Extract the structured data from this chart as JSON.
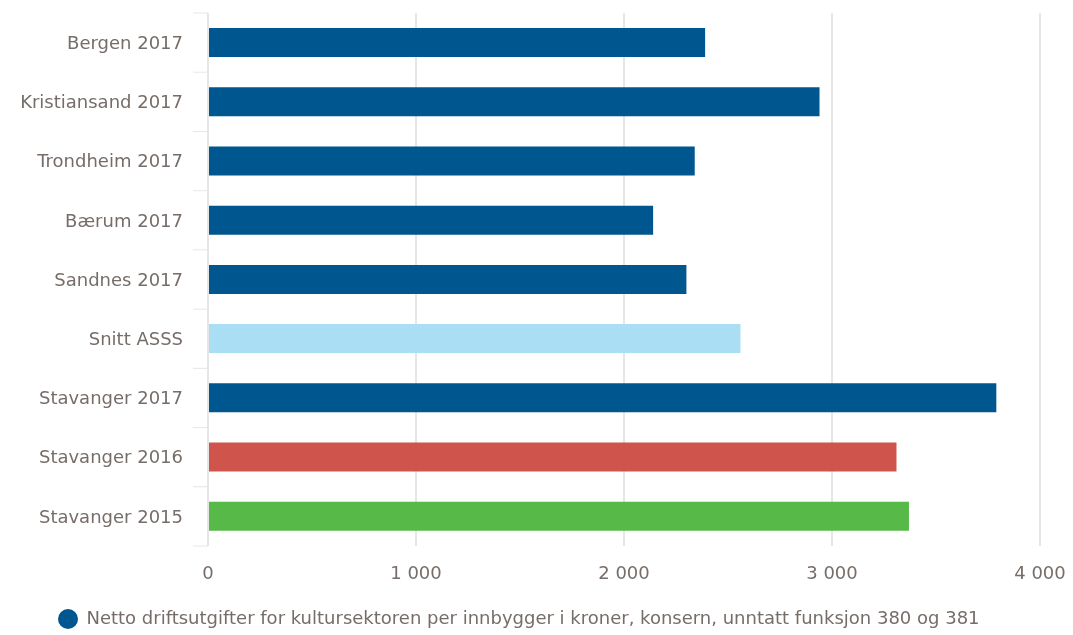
{
  "chart_data": {
    "type": "bar",
    "orientation": "horizontal",
    "categories": [
      "Bergen 2017",
      "Kristiansand 2017",
      "Trondheim 2017",
      "Bærum 2017",
      "Sandnes 2017",
      "Snitt ASSS",
      "Stavanger 2017",
      "Stavanger 2016",
      "Stavanger 2015"
    ],
    "series": [
      {
        "name": "Netto driftsutgifter for kultursektoren per innbygger i kroner, konsern, unntatt funksjon 380 og 381",
        "color": "#00568f",
        "colors": [
          "#00568f",
          "#00568f",
          "#00568f",
          "#00568f",
          "#00568f",
          "#a9def5",
          "#00568f",
          "#cf544b",
          "#56b948"
        ],
        "values": [
          2390,
          2940,
          2340,
          2140,
          2300,
          2560,
          3790,
          3310,
          3370
        ]
      }
    ],
    "xlim": [
      0,
      4000
    ],
    "xticks": [
      0,
      {
        "value": 1000,
        "label": "1 000"
      },
      {
        "value": 2000,
        "label": "2 000"
      },
      {
        "value": 3000,
        "label": "3 000"
      },
      {
        "value": 4000,
        "label": "4 000"
      }
    ],
    "grid": "x",
    "legend": "bottom"
  }
}
